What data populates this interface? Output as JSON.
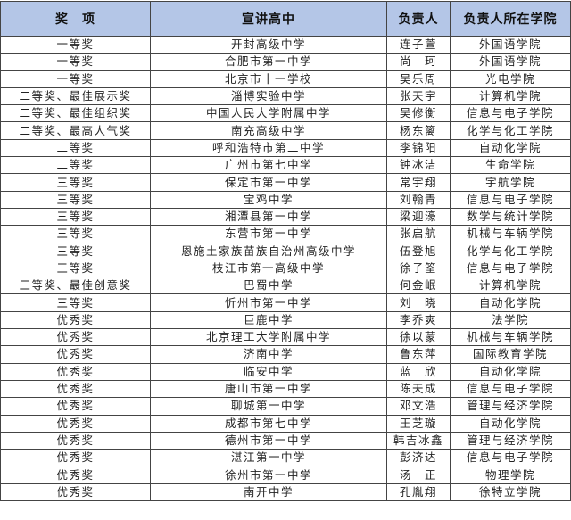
{
  "headers": [
    "奖　项",
    "宣讲高中",
    "负责人",
    "负责人所在学院"
  ],
  "header_color": "#b4c6e7",
  "rows": [
    [
      "一等奖",
      "开封高级中学",
      "连子萱",
      "外国语学院"
    ],
    [
      "一等奖",
      "合肥市第一中学",
      "尚　珂",
      "外国语学院"
    ],
    [
      "一等奖",
      "北京市十一学校",
      "吴乐周",
      "光电学院"
    ],
    [
      "二等奖、最佳展示奖",
      "淄博实验中学",
      "张天宇",
      "计算机学院"
    ],
    [
      "二等奖、最佳组织奖",
      "中国人民大学附属中学",
      "吴修衡",
      "信息与电子学院"
    ],
    [
      "二等奖、最高人气奖",
      "南充高级中学",
      "杨东篱",
      "化学与化工学院"
    ],
    [
      "二等奖",
      "呼和浩特市第二中学",
      "李锦阳",
      "自动化学院"
    ],
    [
      "二等奖",
      "广州市第七中学",
      "钟冰洁",
      "生命学院"
    ],
    [
      "三等奖",
      "保定市第一中学",
      "常宇翔",
      "宇航学院"
    ],
    [
      "三等奖",
      "宝鸡中学",
      "刘翰青",
      "信息与电子学院"
    ],
    [
      "三等奖",
      "湘潭县第一中学",
      "梁迎濠",
      "数学与统计学院"
    ],
    [
      "三等奖",
      "东营市第一中学",
      "张启航",
      "机械与车辆学院"
    ],
    [
      "三等奖",
      "恩施土家族苗族自治州高级中学",
      "伍登旭",
      "化学与化工学院"
    ],
    [
      "三等奖",
      "枝江市第一高级中学",
      "徐子筌",
      "信息与电子学院"
    ],
    [
      "三等奖、最佳创意奖",
      "巴蜀中学",
      "何金岷",
      "计算机学院"
    ],
    [
      "三等奖",
      "忻州市第一中学",
      "刘　晓",
      "自动化学院"
    ],
    [
      "优秀奖",
      "巨鹿中学",
      "李乔爽",
      "法学院"
    ],
    [
      "优秀奖",
      "北京理工大学附属中学",
      "徐以蒙",
      "机械与车辆学院"
    ],
    [
      "优秀奖",
      "济南中学",
      "鲁东萍",
      "国际教育学院"
    ],
    [
      "优秀奖",
      "临安中学",
      "蓝　欣",
      "自动化学院"
    ],
    [
      "优秀奖",
      "唐山市第一中学",
      "陈天成",
      "信息与电子学院"
    ],
    [
      "优秀奖",
      "聊城第一中学",
      "邓文浩",
      "管理与经济学院"
    ],
    [
      "优秀奖",
      "成都市第七中学",
      "王芝璇",
      "自动化学院"
    ],
    [
      "优秀奖",
      "德州市第一中学",
      "韩吉冰鑫",
      "管理与经济学院"
    ],
    [
      "优秀奖",
      "湛江第一中学",
      "彭济达",
      "信息与电子学院"
    ],
    [
      "优秀奖",
      "徐州市第一中学",
      "汤　正",
      "物理学院"
    ],
    [
      "优秀奖",
      "南开中学",
      "孔胤翔",
      "徐特立学院"
    ]
  ]
}
